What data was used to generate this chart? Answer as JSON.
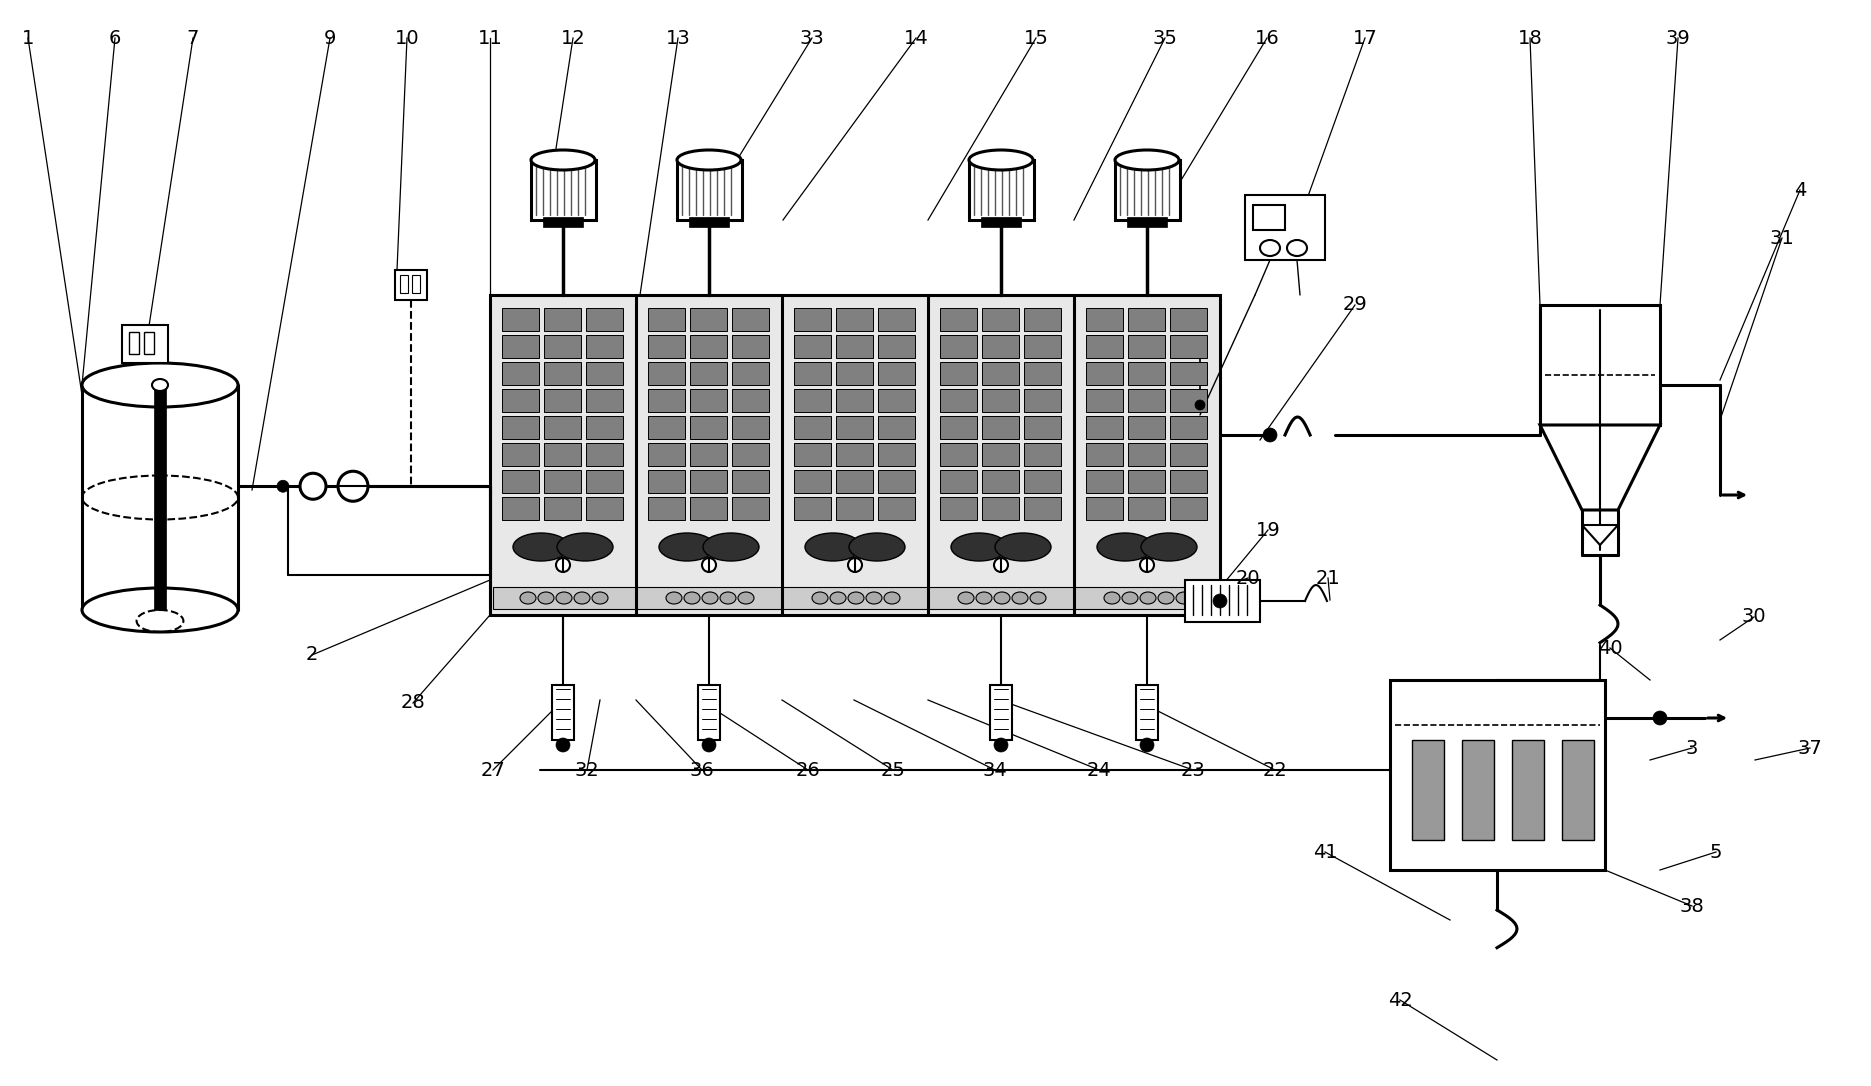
{
  "bg": "#ffffff",
  "black": "#000000",
  "gray_media": "#808080",
  "gray_light": "#e8e8e8",
  "gray_aer": "#303030",
  "lw": 1.5,
  "lw2": 2.2,
  "fs": 14,
  "labels": [
    [
      "1",
      28,
      38
    ],
    [
      "6",
      115,
      38
    ],
    [
      "7",
      193,
      38
    ],
    [
      "9",
      330,
      38
    ],
    [
      "10",
      407,
      38
    ],
    [
      "11",
      490,
      38
    ],
    [
      "12",
      573,
      38
    ],
    [
      "13",
      678,
      38
    ],
    [
      "33",
      812,
      38
    ],
    [
      "14",
      916,
      38
    ],
    [
      "15",
      1036,
      38
    ],
    [
      "35",
      1165,
      38
    ],
    [
      "16",
      1267,
      38
    ],
    [
      "17",
      1365,
      38
    ],
    [
      "18",
      1530,
      38
    ],
    [
      "39",
      1678,
      38
    ],
    [
      "4",
      1800,
      190
    ],
    [
      "31",
      1782,
      238
    ],
    [
      "29",
      1355,
      305
    ],
    [
      "19",
      1268,
      530
    ],
    [
      "20",
      1248,
      578
    ],
    [
      "21",
      1328,
      578
    ],
    [
      "40",
      1610,
      648
    ],
    [
      "2",
      312,
      655
    ],
    [
      "28",
      413,
      703
    ],
    [
      "27",
      493,
      770
    ],
    [
      "32",
      587,
      770
    ],
    [
      "36",
      702,
      770
    ],
    [
      "26",
      808,
      770
    ],
    [
      "25",
      893,
      770
    ],
    [
      "34",
      995,
      770
    ],
    [
      "24",
      1099,
      770
    ],
    [
      "23",
      1193,
      770
    ],
    [
      "22",
      1275,
      770
    ],
    [
      "30",
      1754,
      617
    ],
    [
      "3",
      1692,
      748
    ],
    [
      "37",
      1810,
      748
    ],
    [
      "41",
      1325,
      852
    ],
    [
      "5",
      1716,
      852
    ],
    [
      "38",
      1692,
      906
    ],
    [
      "42",
      1400,
      1000
    ]
  ]
}
